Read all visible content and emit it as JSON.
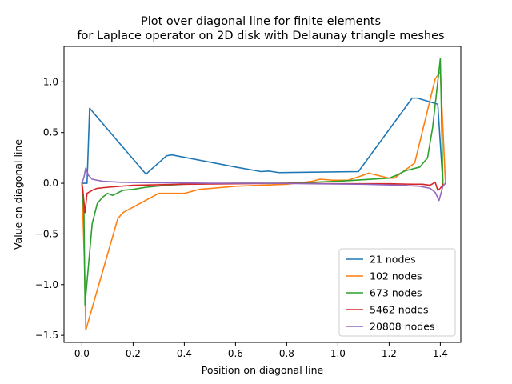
{
  "chart_data": {
    "type": "line",
    "title_lines": [
      "Plot over diagonal line for finite elements",
      "for Laplace operator on 2D disk with Delaunay triangle meshes"
    ],
    "xlabel": "Position on diagonal line",
    "ylabel": "Value on diagonal line",
    "xlim": [
      -0.07,
      1.48
    ],
    "ylim": [
      -1.57,
      1.35
    ],
    "x_ticks": [
      0.0,
      0.2,
      0.4,
      0.6,
      0.8,
      1.0,
      1.2,
      1.4
    ],
    "y_ticks": [
      -1.5,
      -1.0,
      -0.5,
      0.0,
      0.5,
      1.0
    ],
    "x_tick_labels": [
      "0.0",
      "0.2",
      "0.4",
      "0.6",
      "0.8",
      "1.0",
      "1.2",
      "1.4"
    ],
    "y_tick_labels": [
      "−1.5",
      "−1.0",
      "−0.5",
      "0.0",
      "0.5",
      "1.0"
    ],
    "grid": false,
    "legend_position": "lower-right",
    "series": [
      {
        "name": "21 nodes",
        "color": "#1f77b4",
        "points": [
          [
            0.0,
            0.0
          ],
          [
            0.01,
            0.0
          ],
          [
            0.02,
            0.0
          ],
          [
            0.03,
            0.74
          ],
          [
            0.25,
            0.09
          ],
          [
            0.33,
            0.27
          ],
          [
            0.35,
            0.28
          ],
          [
            0.6,
            0.16
          ],
          [
            0.7,
            0.115
          ],
          [
            0.73,
            0.12
          ],
          [
            0.77,
            0.105
          ],
          [
            1.08,
            0.115
          ],
          [
            1.29,
            0.84
          ],
          [
            1.31,
            0.84
          ],
          [
            1.39,
            0.78
          ],
          [
            1.41,
            0.0
          ]
        ]
      },
      {
        "name": "102 nodes",
        "color": "#ff7f0e",
        "points": [
          [
            0.0,
            0.0
          ],
          [
            0.01,
            -0.8
          ],
          [
            0.015,
            -1.45
          ],
          [
            0.14,
            -0.35
          ],
          [
            0.16,
            -0.29
          ],
          [
            0.3,
            -0.1
          ],
          [
            0.4,
            -0.1
          ],
          [
            0.46,
            -0.06
          ],
          [
            0.6,
            -0.03
          ],
          [
            0.8,
            -0.01
          ],
          [
            0.9,
            0.02
          ],
          [
            0.93,
            0.04
          ],
          [
            0.98,
            0.03
          ],
          [
            1.04,
            0.03
          ],
          [
            1.1,
            0.08
          ],
          [
            1.12,
            0.1
          ],
          [
            1.2,
            0.05
          ],
          [
            1.22,
            0.05
          ],
          [
            1.3,
            0.2
          ],
          [
            1.38,
            1.03
          ],
          [
            1.4,
            1.1
          ],
          [
            1.42,
            0.0
          ]
        ]
      },
      {
        "name": "673 nodes",
        "color": "#2ca02c",
        "points": [
          [
            0.0,
            0.0
          ],
          [
            0.008,
            -0.3
          ],
          [
            0.012,
            -1.2
          ],
          [
            0.04,
            -0.4
          ],
          [
            0.06,
            -0.2
          ],
          [
            0.08,
            -0.14
          ],
          [
            0.1,
            -0.1
          ],
          [
            0.12,
            -0.12
          ],
          [
            0.16,
            -0.07
          ],
          [
            0.2,
            -0.06
          ],
          [
            0.25,
            -0.04
          ],
          [
            0.33,
            -0.02
          ],
          [
            0.4,
            -0.01
          ],
          [
            0.6,
            0.0
          ],
          [
            0.8,
            0.0
          ],
          [
            1.0,
            0.02
          ],
          [
            1.2,
            0.05
          ],
          [
            1.23,
            0.08
          ],
          [
            1.26,
            0.12
          ],
          [
            1.32,
            0.16
          ],
          [
            1.35,
            0.25
          ],
          [
            1.37,
            0.55
          ],
          [
            1.39,
            1.0
          ],
          [
            1.4,
            1.23
          ],
          [
            1.41,
            0.0
          ]
        ]
      },
      {
        "name": "5462 nodes",
        "color": "#d62728",
        "points": [
          [
            0.0,
            0.0
          ],
          [
            0.003,
            -0.05
          ],
          [
            0.012,
            -0.29
          ],
          [
            0.02,
            -0.1
          ],
          [
            0.04,
            -0.07
          ],
          [
            0.06,
            -0.05
          ],
          [
            0.1,
            -0.04
          ],
          [
            0.2,
            -0.02
          ],
          [
            0.4,
            -0.01
          ],
          [
            0.6,
            -0.005
          ],
          [
            0.8,
            0.0
          ],
          [
            1.0,
            -0.005
          ],
          [
            1.2,
            -0.005
          ],
          [
            1.3,
            -0.01
          ],
          [
            1.33,
            -0.01
          ],
          [
            1.36,
            -0.02
          ],
          [
            1.38,
            0.01
          ],
          [
            1.39,
            -0.07
          ],
          [
            1.4,
            -0.05
          ],
          [
            1.41,
            -0.01
          ]
        ]
      },
      {
        "name": "20808 nodes",
        "color": "#9467bd",
        "points": [
          [
            0.0,
            0.0
          ],
          [
            0.008,
            0.06
          ],
          [
            0.015,
            0.15
          ],
          [
            0.025,
            0.08
          ],
          [
            0.04,
            0.04
          ],
          [
            0.08,
            0.02
          ],
          [
            0.15,
            0.01
          ],
          [
            0.3,
            0.005
          ],
          [
            0.5,
            0.0
          ],
          [
            0.7,
            0.0
          ],
          [
            0.9,
            -0.005
          ],
          [
            1.1,
            -0.01
          ],
          [
            1.25,
            -0.02
          ],
          [
            1.32,
            -0.03
          ],
          [
            1.36,
            -0.05
          ],
          [
            1.38,
            -0.09
          ],
          [
            1.395,
            -0.17
          ],
          [
            1.41,
            -0.03
          ],
          [
            1.42,
            0.0
          ]
        ]
      }
    ]
  }
}
